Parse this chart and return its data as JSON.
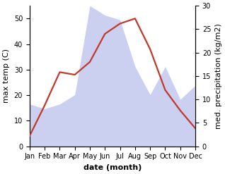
{
  "months": [
    "Jan",
    "Feb",
    "Mar",
    "Apr",
    "May",
    "Jun",
    "Jul",
    "Aug",
    "Sep",
    "Oct",
    "Nov",
    "Dec"
  ],
  "temp_max": [
    4,
    16,
    29,
    28,
    33,
    44,
    48,
    50,
    38,
    22,
    14,
    7
  ],
  "precipitation_kg": [
    9,
    8,
    9,
    11,
    30,
    28,
    27,
    17,
    11,
    17,
    10,
    13
  ],
  "temp_ylim": [
    0,
    55
  ],
  "temp_yticks": [
    0,
    10,
    20,
    30,
    40,
    50
  ],
  "precip_ylim": [
    0,
    30
  ],
  "precip_yticks": [
    0,
    5,
    10,
    15,
    20,
    25,
    30
  ],
  "fill_color": "#b0b8e8",
  "fill_alpha": 0.65,
  "line_color": "#c0392b",
  "line_width": 1.6,
  "xlabel": "date (month)",
  "ylabel_left": "max temp (C)",
  "ylabel_right": "med. precipitation (kg/m2)",
  "bg_color": "#ffffff",
  "tick_fontsize": 7,
  "ylabel_fontsize": 8,
  "xlabel_fontsize": 8
}
